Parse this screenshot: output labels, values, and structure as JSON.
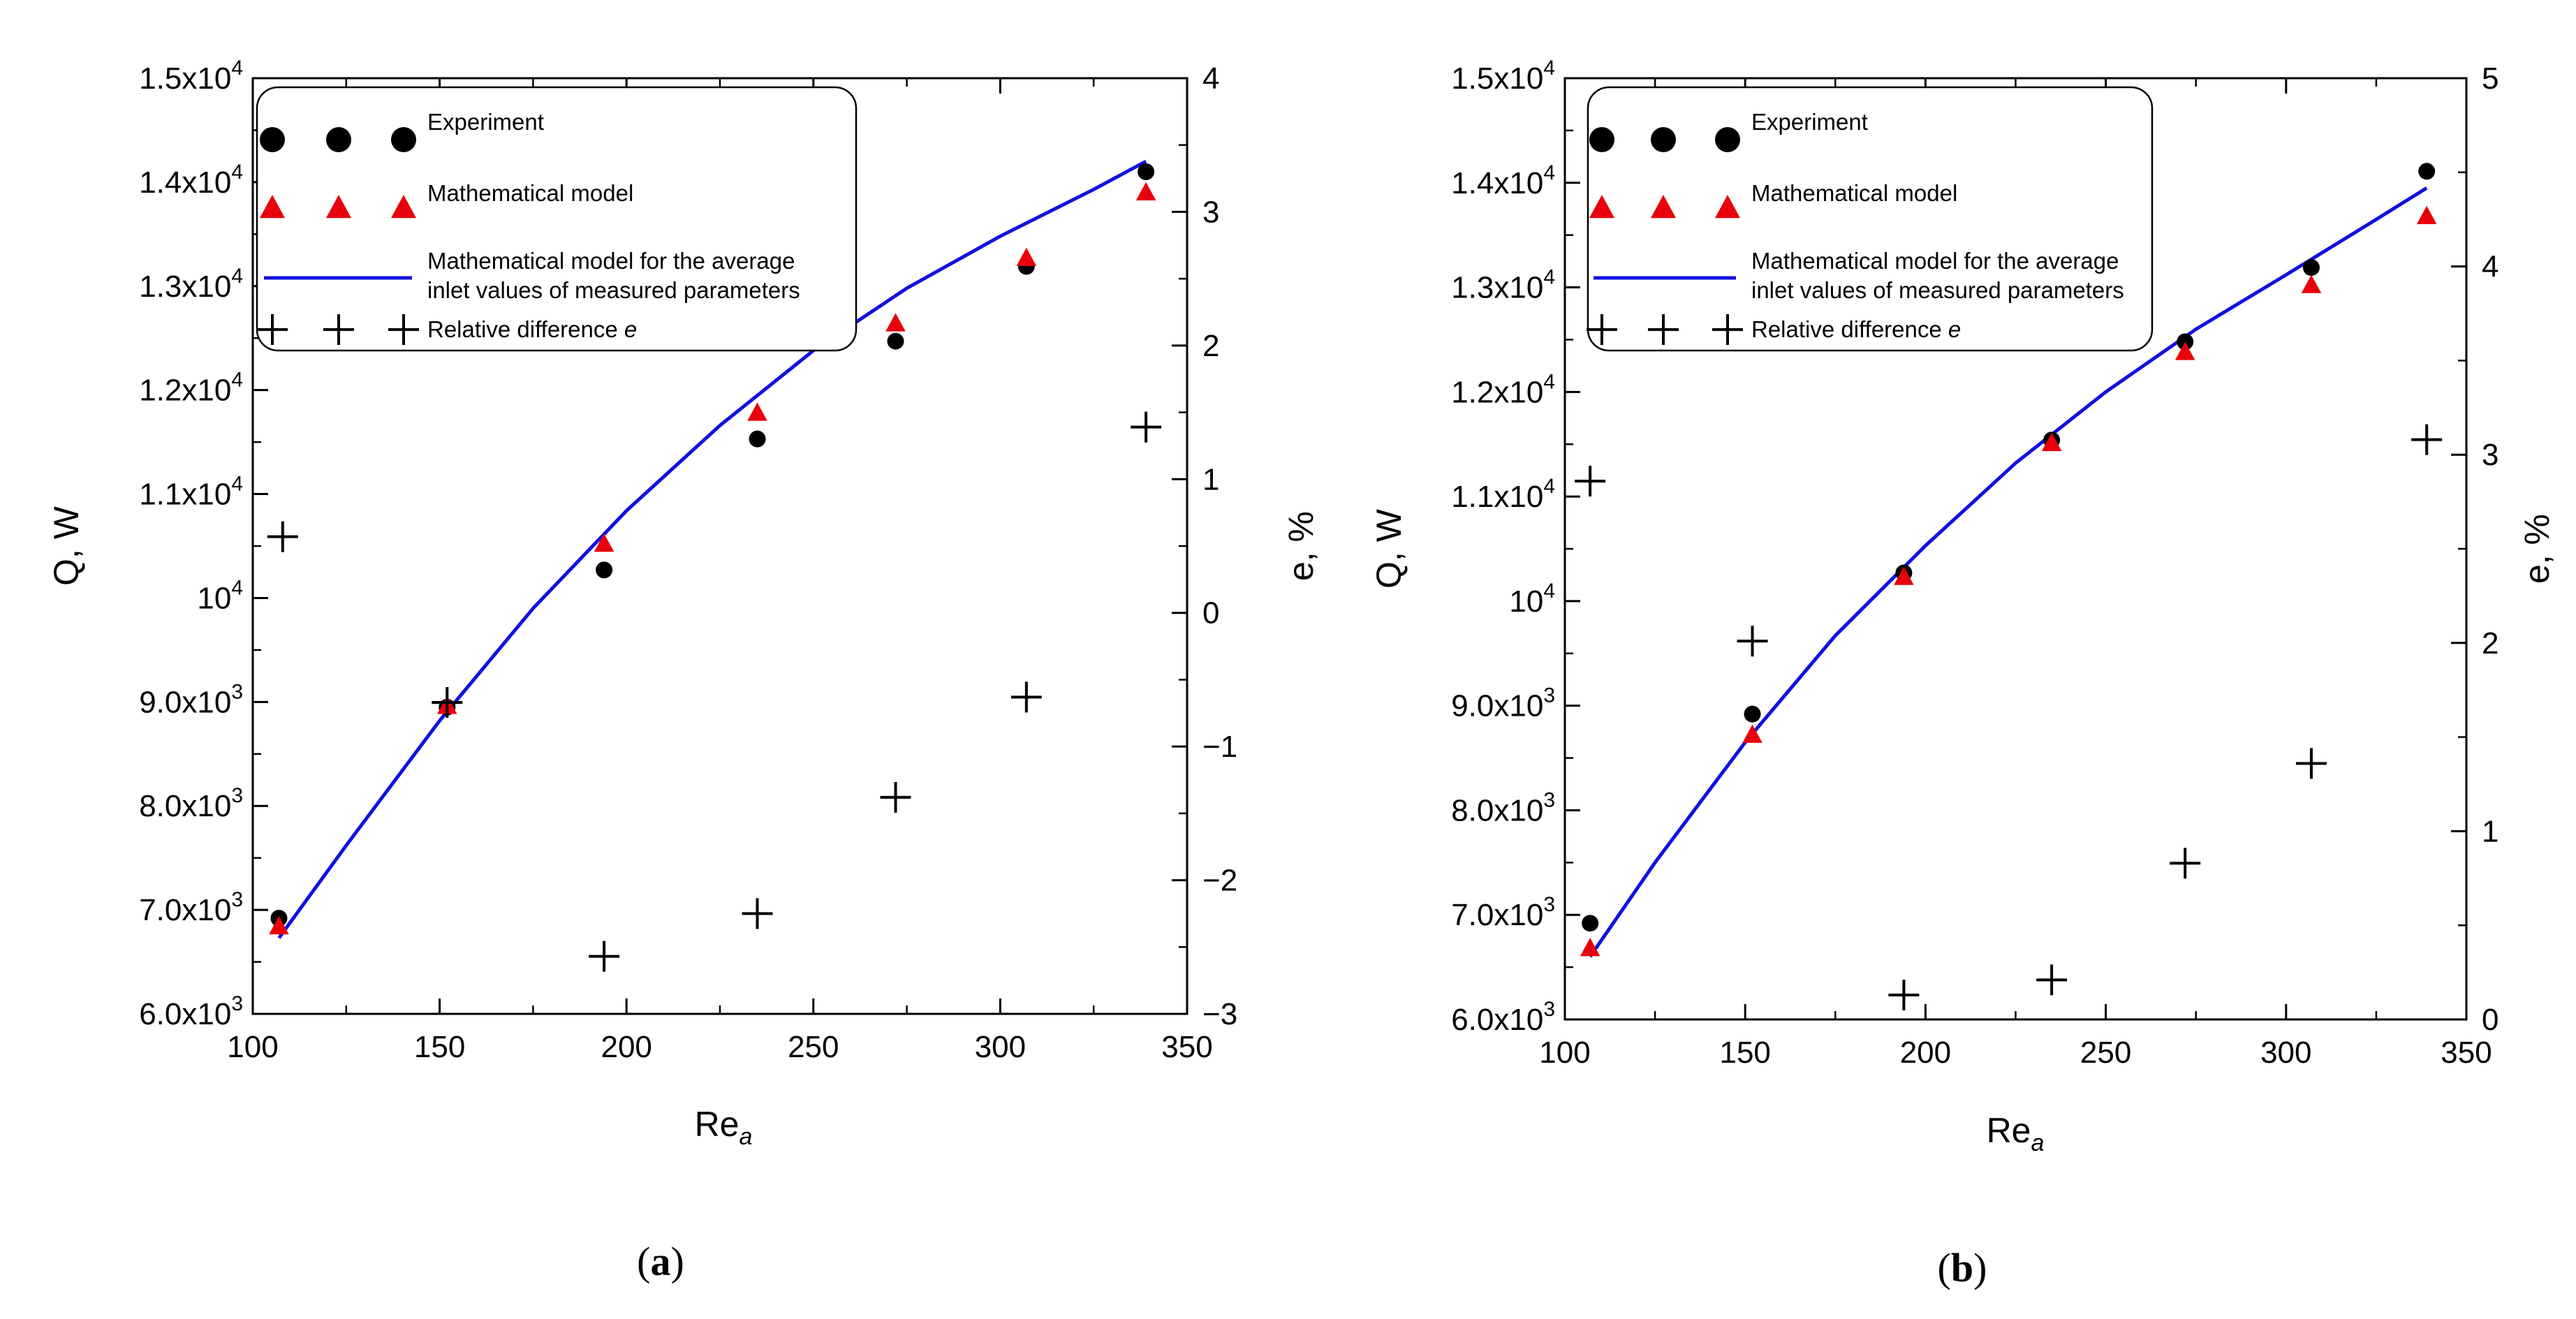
{
  "chart_data": [
    {
      "panel": "a",
      "type": "scatter",
      "caption_open": "(",
      "caption_letter": "a",
      "caption_close": ")",
      "xlabel_main": "Re",
      "xlabel_sub": "a",
      "ylabel": "Q, W",
      "y2label": "e, %",
      "xlim": [
        100,
        350
      ],
      "ylim": [
        6000,
        15000
      ],
      "y2lim": [
        -3,
        4
      ],
      "x_ticks": [
        {
          "v": 100,
          "label": "100"
        },
        {
          "v": 150,
          "label": "150"
        },
        {
          "v": 200,
          "label": "200"
        },
        {
          "v": 250,
          "label": "250"
        },
        {
          "v": 300,
          "label": "300"
        },
        {
          "v": 350,
          "label": "350"
        }
      ],
      "y_ticks": [
        {
          "v": 6000,
          "m": "6.0x10",
          "e": "3"
        },
        {
          "v": 7000,
          "m": "7.0x10",
          "e": "3"
        },
        {
          "v": 8000,
          "m": "8.0x10",
          "e": "3"
        },
        {
          "v": 9000,
          "m": "9.0x10",
          "e": "3"
        },
        {
          "v": 10000,
          "m": "10",
          "e": "4"
        },
        {
          "v": 11000,
          "m": "1.1x10",
          "e": "4"
        },
        {
          "v": 12000,
          "m": "1.2x10",
          "e": "4"
        },
        {
          "v": 13000,
          "m": "1.3x10",
          "e": "4"
        },
        {
          "v": 14000,
          "m": "1.4x10",
          "e": "4"
        },
        {
          "v": 15000,
          "m": "1.5x10",
          "e": "4"
        }
      ],
      "y2_ticks": [
        {
          "v": -3,
          "label": "-3"
        },
        {
          "v": -2,
          "label": "-2"
        },
        {
          "v": -1,
          "label": "-1"
        },
        {
          "v": 0,
          "label": "0"
        },
        {
          "v": 1,
          "label": "1"
        },
        {
          "v": 2,
          "label": "2"
        },
        {
          "v": 3,
          "label": "3"
        },
        {
          "v": 4,
          "label": "4"
        }
      ],
      "legend": {
        "experiment": "Experiment",
        "model": "Mathematical model",
        "avg_line1": "Mathematical model for the average",
        "avg_line2": "inlet values of measured parameters",
        "diff_prefix": "Relative difference ",
        "diff_symbol": "e"
      },
      "series": [
        {
          "name": "Experiment",
          "marker": "circle",
          "color": "#000000",
          "x": [
            107,
            152,
            194,
            235,
            272,
            307,
            339
          ],
          "y": [
            6920,
            8950,
            10270,
            11530,
            12470,
            13190,
            14100
          ]
        },
        {
          "name": "Mathematical model",
          "marker": "triangle",
          "color": "#e8000b",
          "x": [
            107,
            152,
            194,
            235,
            272,
            307,
            339
          ],
          "y": [
            6840,
            8960,
            10520,
            11780,
            12640,
            13270,
            13900
          ]
        },
        {
          "name": "Mathematical model for the average inlet values of measured parameters",
          "marker": "line",
          "color": "#1010e0",
          "x": [
            107,
            125,
            150,
            175,
            200,
            225,
            250,
            275,
            300,
            325,
            339
          ],
          "y": [
            6730,
            7620,
            8820,
            9900,
            10840,
            11660,
            12380,
            12980,
            13480,
            13930,
            14200
          ]
        },
        {
          "name": "Relative difference e",
          "marker": "plus",
          "color": "#000000",
          "axis": "right",
          "x": [
            108,
            152,
            194,
            235,
            272,
            307,
            339
          ],
          "y": [
            0.57,
            -0.67,
            -2.57,
            -2.25,
            -1.38,
            -0.63,
            1.39
          ]
        }
      ]
    },
    {
      "panel": "b",
      "type": "scatter",
      "caption_open": "(",
      "caption_letter": "b",
      "caption_close": ")",
      "xlabel_main": "Re",
      "xlabel_sub": "a",
      "ylabel": "Q, W",
      "y2label": "e, %",
      "xlim": [
        100,
        350
      ],
      "ylim": [
        6000,
        15000
      ],
      "y2lim": [
        0,
        5
      ],
      "x_ticks": [
        {
          "v": 100,
          "label": "100"
        },
        {
          "v": 150,
          "label": "150"
        },
        {
          "v": 200,
          "label": "200"
        },
        {
          "v": 250,
          "label": "250"
        },
        {
          "v": 300,
          "label": "300"
        },
        {
          "v": 350,
          "label": "350"
        }
      ],
      "y_ticks": [
        {
          "v": 6000,
          "m": "6.0x10",
          "e": "3"
        },
        {
          "v": 7000,
          "m": "7.0x10",
          "e": "3"
        },
        {
          "v": 8000,
          "m": "8.0x10",
          "e": "3"
        },
        {
          "v": 9000,
          "m": "9.0x10",
          "e": "3"
        },
        {
          "v": 10000,
          "m": "10",
          "e": "4"
        },
        {
          "v": 11000,
          "m": "1.1x10",
          "e": "4"
        },
        {
          "v": 12000,
          "m": "1.2x10",
          "e": "4"
        },
        {
          "v": 13000,
          "m": "1.3x10",
          "e": "4"
        },
        {
          "v": 14000,
          "m": "1.4x10",
          "e": "4"
        },
        {
          "v": 15000,
          "m": "1.5x10",
          "e": "4"
        }
      ],
      "y2_ticks": [
        {
          "v": 0,
          "label": "0"
        },
        {
          "v": 1,
          "label": "1"
        },
        {
          "v": 2,
          "label": "2"
        },
        {
          "v": 3,
          "label": "3"
        },
        {
          "v": 4,
          "label": "4"
        },
        {
          "v": 5,
          "label": "5"
        }
      ],
      "legend": {
        "experiment": "Experiment",
        "model": "Mathematical model",
        "avg_line1": "Mathematical model for the average",
        "avg_line2": "inlet values of measured parameters",
        "diff_prefix": "Relative difference ",
        "diff_symbol": "e"
      },
      "series": [
        {
          "name": "Experiment",
          "marker": "circle",
          "color": "#000000",
          "x": [
            107,
            152,
            194,
            235,
            272,
            307,
            339
          ],
          "y": [
            6920,
            8920,
            10270,
            11540,
            12480,
            13190,
            14110
          ]
        },
        {
          "name": "Mathematical model",
          "marker": "triangle",
          "color": "#e8000b",
          "x": [
            107,
            152,
            194,
            235,
            272,
            307,
            339
          ],
          "y": [
            6680,
            8720,
            10230,
            11510,
            12380,
            13020,
            13680
          ]
        },
        {
          "name": "Mathematical model for the average inlet values of measured parameters",
          "marker": "line",
          "color": "#1010e0",
          "x": [
            107,
            125,
            150,
            175,
            200,
            225,
            250,
            275,
            300,
            325,
            339
          ],
          "y": [
            6600,
            7500,
            8650,
            9670,
            10530,
            11320,
            12000,
            12600,
            13120,
            13650,
            13950
          ]
        },
        {
          "name": "Relative difference e",
          "marker": "plus",
          "color": "#000000",
          "axis": "right",
          "x": [
            107,
            152,
            194,
            235,
            272,
            307,
            339
          ],
          "y": [
            2.86,
            2.01,
            0.13,
            0.21,
            0.83,
            1.36,
            3.08
          ]
        }
      ]
    }
  ]
}
